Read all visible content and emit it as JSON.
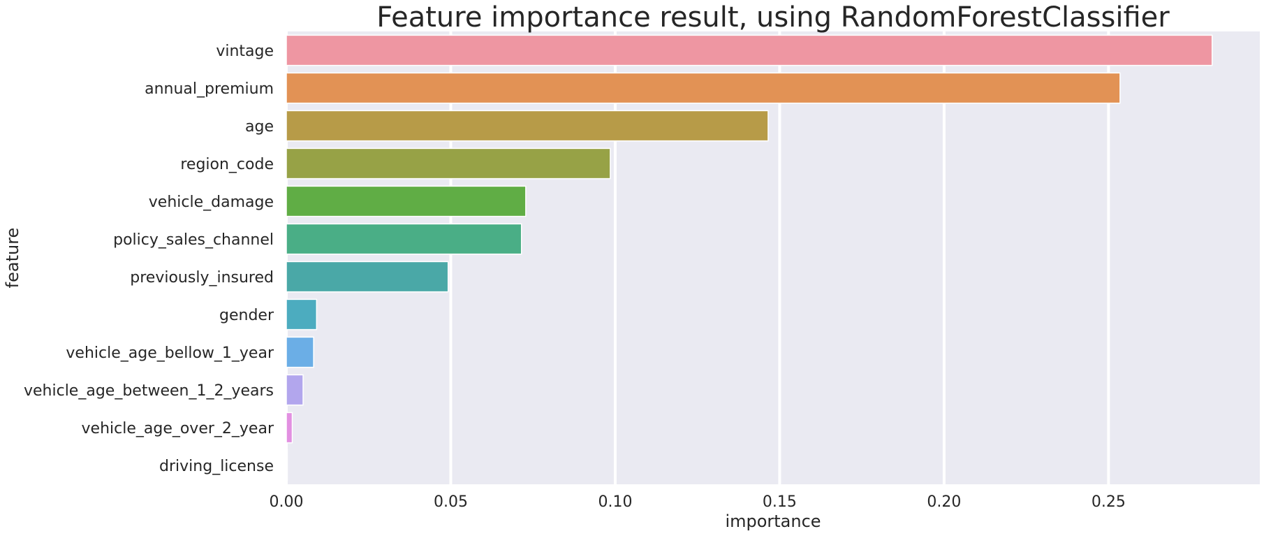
{
  "chart_data": {
    "type": "bar",
    "orientation": "horizontal",
    "title": "Feature importance result, using RandomForestClassifier",
    "xlabel": "importance",
    "ylabel": "feature",
    "xlim": [
      0,
      0.296
    ],
    "xticks": [
      0.0,
      0.05,
      0.1,
      0.15,
      0.2,
      0.25
    ],
    "xtick_labels": [
      "0.00",
      "0.05",
      "0.10",
      "0.15",
      "0.20",
      "0.25"
    ],
    "grid": true,
    "categories": [
      "vintage",
      "annual_premium",
      "age",
      "region_code",
      "vehicle_damage",
      "policy_sales_channel",
      "previously_insured",
      "gender",
      "vehicle_age_bellow_1_year",
      "vehicle_age_between_1_2_years",
      "vehicle_age_over_2_year",
      "driving_license"
    ],
    "values": [
      0.2815,
      0.2535,
      0.1465,
      0.0985,
      0.0728,
      0.0715,
      0.0492,
      0.0092,
      0.0083,
      0.0051,
      0.0018,
      0.0003
    ],
    "colors": [
      "#ee96a2",
      "#e29255",
      "#b79b48",
      "#97a246",
      "#60ad45",
      "#4aae86",
      "#4aa8a7",
      "#4cacbf",
      "#6baee6",
      "#b2a6ed",
      "#e290e1",
      "#ee96a2"
    ]
  }
}
